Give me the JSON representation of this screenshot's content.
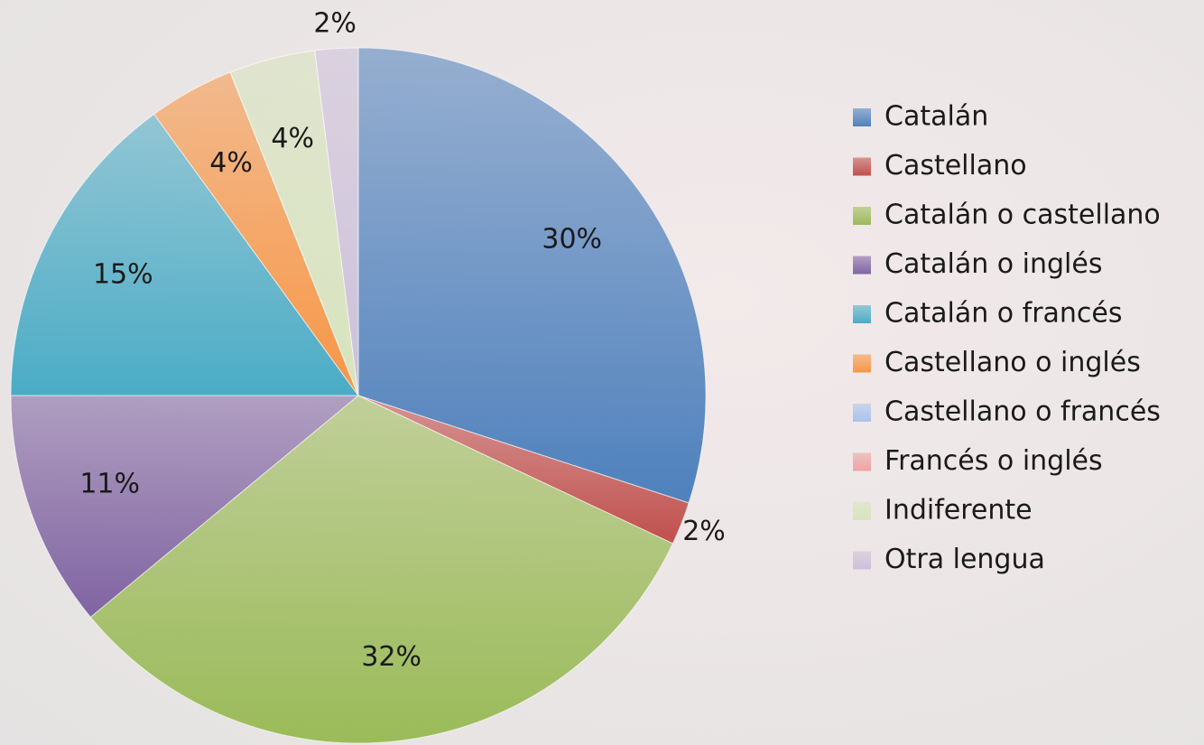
{
  "chart_data": {
    "type": "pie",
    "categories": [
      "Catalán",
      "Castellano",
      "Catalán o castellano",
      "Catalán o inglés",
      "Catalán o francés",
      "Castellano o inglés",
      "Castellano o francés",
      "Francés o inglés",
      "Indiferente",
      "Otra lengua"
    ],
    "values": [
      30,
      2,
      32,
      11,
      15,
      4,
      0,
      0,
      4,
      2
    ],
    "value_labels": [
      "30%",
      "2%",
      "32%",
      "11%",
      "15%",
      "4%",
      null,
      null,
      "4%",
      "2%"
    ],
    "colors": [
      "#4f81bd",
      "#c0504d",
      "#9bbb59",
      "#8064a2",
      "#4bacc6",
      "#f79646",
      "#a9c4eb",
      "#eea3a2",
      "#d7e4bd",
      "#ccc1da"
    ],
    "legend": "right"
  }
}
